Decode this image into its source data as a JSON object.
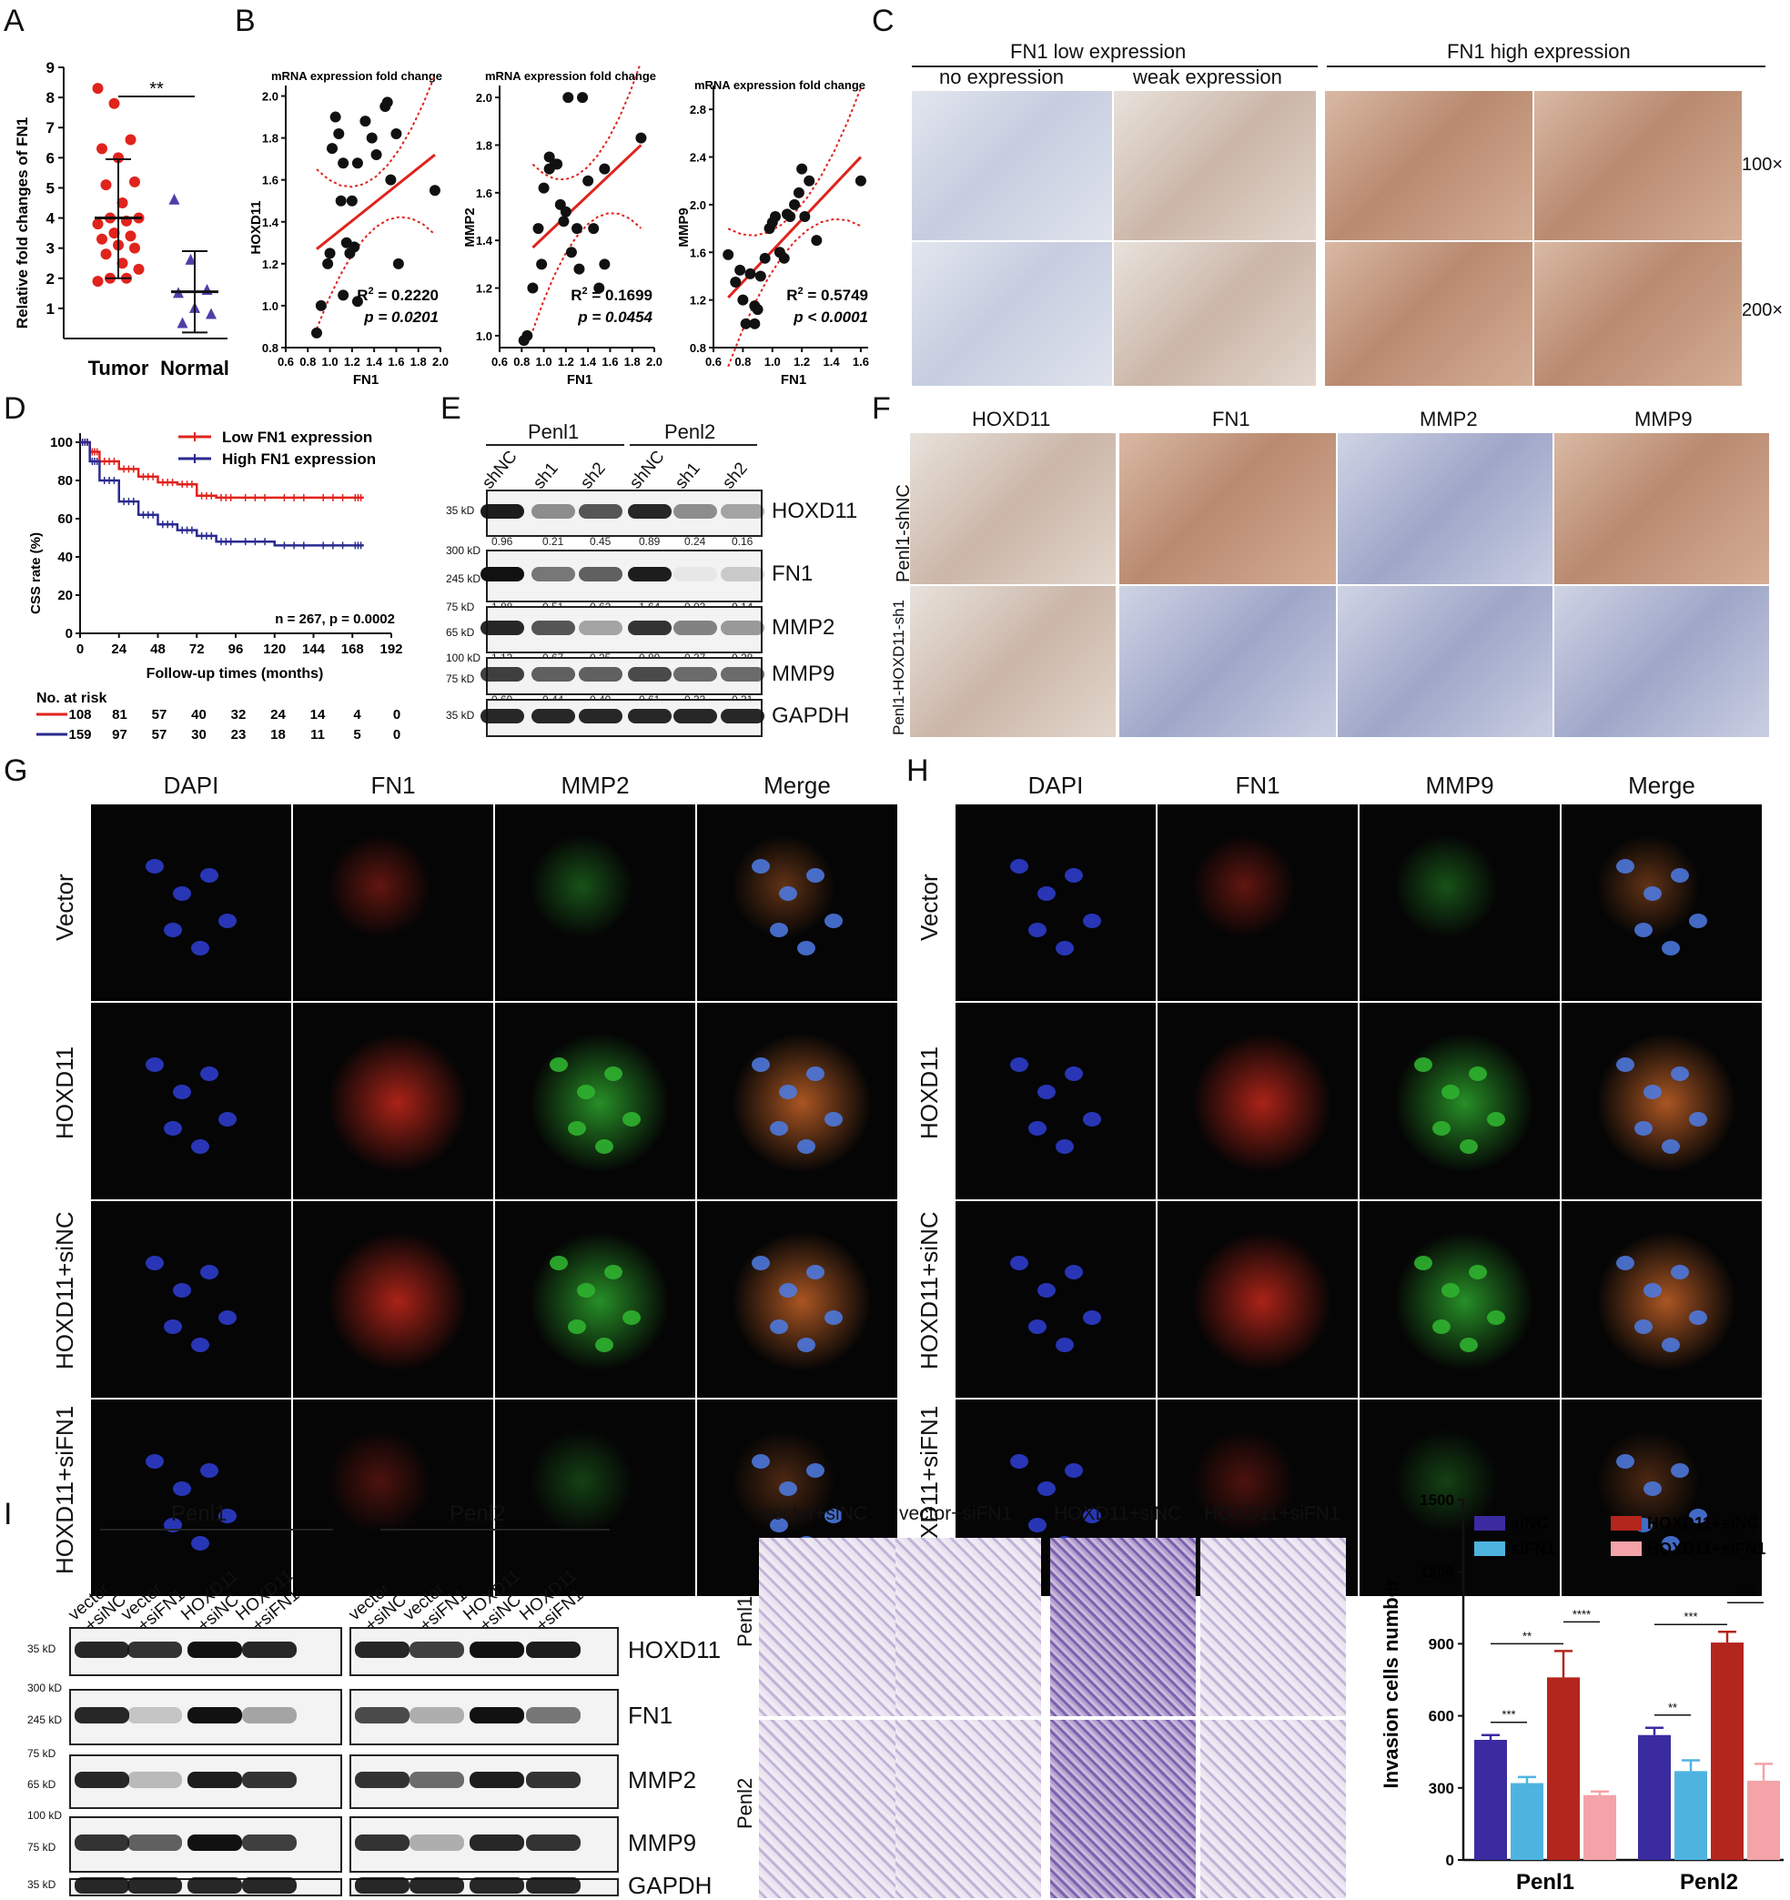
{
  "panels": [
    "A",
    "B",
    "C",
    "D",
    "E",
    "F",
    "G",
    "H",
    "I",
    "J"
  ],
  "panelA": {
    "ylabel": "Relative fold changes of FN1",
    "yticks": [
      "9",
      "8",
      "7",
      "6",
      "5",
      "4",
      "3",
      "2",
      "1"
    ],
    "categories": [
      "Tumor",
      "Normal"
    ],
    "sig": "**"
  },
  "panelB": {
    "title": "mRNA expression fold change",
    "plots": [
      {
        "ylabel": "HOXD11",
        "r2": "R",
        "r2val": " = 0.2220",
        "p": "p = 0.0201",
        "yticks": [
          "2.0",
          "1.8",
          "1.6",
          "1.4",
          "1.2",
          "1.0",
          "0.8"
        ],
        "xticks": [
          "0.6",
          "0.8",
          "1.0",
          "1.2",
          "1.4",
          "1.6",
          "1.8",
          "2.0"
        ]
      },
      {
        "ylabel": "MMP2",
        "r2": "R",
        "r2val": " = 0.1699",
        "p": "p = 0.0454",
        "yticks": [
          "2.0",
          "1.8",
          "1.6",
          "1.4",
          "1.2",
          "1.0"
        ],
        "xticks": [
          "0.6",
          "0.8",
          "1.0",
          "1.2",
          "1.4",
          "1.6",
          "1.8",
          "2.0"
        ]
      },
      {
        "ylabel": "MMP9",
        "r2": "R",
        "r2val": " = 0.5749",
        "p": "p < 0.0001",
        "yticks": [
          "2.8",
          "2.4",
          "2.0",
          "1.6",
          "1.2",
          "0.8"
        ],
        "xticks": [
          "0.6",
          "0.8",
          "1.0",
          "1.2",
          "1.4",
          "1.6"
        ]
      }
    ],
    "xlabel": "FN1"
  },
  "panelC": {
    "group_low": "FN1 low expression",
    "group_high": "FN1 high expression",
    "sub_no": "no expression",
    "sub_weak": "weak expression",
    "mag1": "100×",
    "mag2": "200×"
  },
  "panelD": {
    "legend_low": "Low FN1 expression",
    "legend_high": "High FN1 expression",
    "ylabel": "CSS rate (%)",
    "xlabel": "Follow-up times (months)",
    "stat": "n = 267, p = 0.0002",
    "yticks": [
      "100",
      "80",
      "60",
      "40",
      "20",
      "0"
    ],
    "xticks": [
      "0",
      "24",
      "48",
      "72",
      "96",
      "120",
      "144",
      "168",
      "192"
    ],
    "risk_title": "No. at risk",
    "risk_low": [
      "108",
      "81",
      "57",
      "40",
      "32",
      "24",
      "14",
      "4",
      "0"
    ],
    "risk_high": [
      "159",
      "97",
      "57",
      "30",
      "23",
      "18",
      "11",
      "5",
      "0"
    ]
  },
  "panelE": {
    "groups": [
      "Penl1",
      "Penl2"
    ],
    "lanes": [
      "shNC",
      "sh1",
      "sh2",
      "shNC",
      "sh1",
      "sh2"
    ],
    "rows": [
      {
        "name": "HOXD11",
        "kd": [
          "35 kD"
        ],
        "vals": [
          "0.96",
          "0.21",
          "0.45",
          "0.89",
          "0.24",
          "0.16"
        ]
      },
      {
        "name": "FN1",
        "kd": [
          "300 kD",
          "245 kD"
        ],
        "vals": [
          "1.88",
          "0.51",
          "0.62",
          "1.64",
          "0.03",
          "0.14"
        ]
      },
      {
        "name": "MMP2",
        "kd": [
          "75 kD",
          "65 kD"
        ],
        "vals": [
          "1.13",
          "0.67",
          "0.25",
          "0.89",
          "0.37",
          "0.28"
        ]
      },
      {
        "name": "MMP9",
        "kd": [
          "100 kD",
          "75 kD"
        ],
        "vals": [
          "0.69",
          "0.44",
          "0.40",
          "0.61",
          "0.33",
          "0.31"
        ]
      },
      {
        "name": "GAPDH",
        "kd": [
          "35 kD"
        ],
        "vals": []
      }
    ]
  },
  "panelF": {
    "cols": [
      "HOXD11",
      "FN1",
      "MMP2",
      "MMP9"
    ],
    "rows": [
      "Penl1-shNC",
      "Penl1-HOXD11-sh1"
    ]
  },
  "panelG": {
    "cols": [
      "DAPI",
      "FN1",
      "MMP2",
      "Merge"
    ],
    "rows": [
      "Vector",
      "HOXD11",
      "HOXD11+siNC",
      "HOXD11+siFN1"
    ]
  },
  "panelH": {
    "cols": [
      "DAPI",
      "FN1",
      "MMP9",
      "Merge"
    ],
    "rows": [
      "Vector",
      "HOXD11",
      "HOXD11+siNC",
      "HOXD11+siFN1"
    ]
  },
  "panelI": {
    "groups": [
      "Penl1",
      "Penl2"
    ],
    "lanes": [
      "vector\n+siNC",
      "vector\n+siFN1",
      "HOXD11\n+siNC",
      "HOXD11\n+siFN1"
    ],
    "lane_l1": [
      "vector",
      "vector",
      "HOXD11",
      "HOXD11"
    ],
    "lane_l2": [
      "+siNC",
      "+siFN1",
      "+siNC",
      "+siFN1"
    ],
    "rows": [
      {
        "name": "HOXD11",
        "kd": [
          "35 kD"
        ]
      },
      {
        "name": "FN1",
        "kd": [
          "300 kD",
          "245 kD"
        ]
      },
      {
        "name": "MMP2",
        "kd": [
          "75 kD",
          "65 kD"
        ]
      },
      {
        "name": "MMP9",
        "kd": [
          "100 kD",
          "75 kD"
        ]
      },
      {
        "name": "GAPDH",
        "kd": [
          "35 kD"
        ]
      }
    ]
  },
  "panelJ": {
    "cols": [
      "vector+siNC",
      "vector+siFN1",
      "HOXD11+siNC",
      "HOXD11+siFN1"
    ],
    "rows": [
      "Penl1",
      "Penl2"
    ]
  },
  "chart_data": [
    {
      "type": "scatter",
      "panel": "A",
      "ylabel": "Relative fold changes of FN1",
      "categories": [
        "Tumor",
        "Normal"
      ],
      "ylim": [
        0,
        9
      ],
      "series": [
        {
          "name": "Tumor",
          "mean": 4.0,
          "sd_low": 2.0,
          "sd_high": 5.95,
          "values": [
            8.3,
            7.8,
            6.6,
            6.3,
            6.0,
            5.2,
            5.1,
            4.5,
            4.0,
            4.0,
            3.9,
            3.8,
            3.5,
            3.4,
            3.3,
            3.1,
            3.0,
            2.8,
            2.5,
            2.3,
            2.0,
            2.0,
            1.9
          ]
        },
        {
          "name": "Normal",
          "mean": 1.55,
          "sd_low": 0.2,
          "sd_high": 2.9,
          "values": [
            4.6,
            2.6,
            1.6,
            1.5,
            1.0,
            0.8,
            0.5
          ]
        }
      ],
      "annotation": "**"
    },
    {
      "type": "scatter",
      "panel": "B1",
      "xlabel": "FN1",
      "ylabel": "HOXD11",
      "xlim": [
        0.6,
        2.0
      ],
      "ylim": [
        0.8,
        2.05
      ],
      "points": [
        [
          0.88,
          0.87
        ],
        [
          0.92,
          1.0
        ],
        [
          0.98,
          1.2
        ],
        [
          1.0,
          1.25
        ],
        [
          1.02,
          1.75
        ],
        [
          1.05,
          1.9
        ],
        [
          1.08,
          1.82
        ],
        [
          1.1,
          1.5
        ],
        [
          1.12,
          1.68
        ],
        [
          1.12,
          1.05
        ],
        [
          1.15,
          1.3
        ],
        [
          1.18,
          1.25
        ],
        [
          1.2,
          1.5
        ],
        [
          1.22,
          1.28
        ],
        [
          1.25,
          1.02
        ],
        [
          1.25,
          1.68
        ],
        [
          1.32,
          1.88
        ],
        [
          1.38,
          1.8
        ],
        [
          1.42,
          1.72
        ],
        [
          1.5,
          1.95
        ],
        [
          1.52,
          1.97
        ],
        [
          1.55,
          1.6
        ],
        [
          1.6,
          1.82
        ],
        [
          1.62,
          1.2
        ],
        [
          1.95,
          1.55
        ]
      ],
      "fit": [
        [
          0.88,
          1.27
        ],
        [
          1.95,
          1.72
        ]
      ],
      "r2": "0.2220",
      "p": "0.0201"
    },
    {
      "type": "scatter",
      "panel": "B2",
      "xlabel": "FN1",
      "ylabel": "MMP2",
      "xlim": [
        0.6,
        2.0
      ],
      "ylim": [
        0.95,
        2.05
      ],
      "points": [
        [
          0.82,
          0.98
        ],
        [
          0.85,
          1.0
        ],
        [
          0.9,
          1.2
        ],
        [
          0.95,
          1.45
        ],
        [
          0.98,
          1.3
        ],
        [
          1.0,
          1.62
        ],
        [
          1.05,
          1.7
        ],
        [
          1.05,
          1.75
        ],
        [
          1.1,
          1.72
        ],
        [
          1.12,
          1.72
        ],
        [
          1.15,
          1.55
        ],
        [
          1.18,
          1.48
        ],
        [
          1.2,
          1.52
        ],
        [
          1.22,
          2.0
        ],
        [
          1.25,
          1.35
        ],
        [
          1.3,
          1.45
        ],
        [
          1.32,
          1.28
        ],
        [
          1.35,
          2.0
        ],
        [
          1.4,
          1.65
        ],
        [
          1.45,
          1.45
        ],
        [
          1.5,
          1.2
        ],
        [
          1.55,
          1.7
        ],
        [
          1.55,
          1.3
        ],
        [
          1.88,
          1.83
        ]
      ],
      "fit": [
        [
          0.9,
          1.37
        ],
        [
          1.88,
          1.8
        ]
      ],
      "r2": "0.1699",
      "p": "0.0454"
    },
    {
      "type": "scatter",
      "panel": "B3",
      "xlabel": "FN1",
      "ylabel": "MMP9",
      "xlim": [
        0.6,
        1.65
      ],
      "ylim": [
        0.8,
        3.0
      ],
      "points": [
        [
          0.7,
          1.58
        ],
        [
          0.75,
          1.35
        ],
        [
          0.78,
          1.45
        ],
        [
          0.8,
          1.2
        ],
        [
          0.82,
          1.0
        ],
        [
          0.85,
          1.42
        ],
        [
          0.88,
          1.15
        ],
        [
          0.88,
          1.0
        ],
        [
          0.9,
          1.12
        ],
        [
          0.92,
          1.4
        ],
        [
          0.95,
          1.55
        ],
        [
          0.98,
          1.8
        ],
        [
          1.0,
          1.85
        ],
        [
          1.02,
          1.9
        ],
        [
          1.05,
          1.6
        ],
        [
          1.08,
          1.55
        ],
        [
          1.1,
          1.92
        ],
        [
          1.12,
          1.9
        ],
        [
          1.15,
          2.0
        ],
        [
          1.18,
          2.1
        ],
        [
          1.2,
          2.3
        ],
        [
          1.22,
          1.9
        ],
        [
          1.25,
          2.2
        ],
        [
          1.3,
          1.7
        ],
        [
          1.6,
          2.2
        ]
      ],
      "fit": [
        [
          0.7,
          1.22
        ],
        [
          1.6,
          2.4
        ]
      ],
      "r2": "0.5749",
      "p": "< 0.0001"
    },
    {
      "type": "line",
      "panel": "D",
      "xlabel": "Follow-up times (months)",
      "ylabel": "CSS rate (%)",
      "xlim": [
        0,
        192
      ],
      "ylim": [
        0,
        100
      ],
      "series": [
        {
          "name": "Low FN1 expression",
          "color": "#e0231d",
          "x": [
            0,
            6,
            12,
            24,
            36,
            48,
            60,
            72,
            84,
            96,
            120,
            144,
            168,
            175
          ],
          "y": [
            100,
            95,
            90,
            86,
            82,
            79,
            78,
            72,
            71,
            71,
            71,
            71,
            71,
            71
          ]
        },
        {
          "name": "High FN1 expression",
          "color": "#2a2a8f",
          "x": [
            0,
            6,
            12,
            24,
            36,
            48,
            60,
            72,
            84,
            96,
            120,
            144,
            168,
            175
          ],
          "y": [
            100,
            90,
            80,
            69,
            62,
            57,
            54,
            51,
            48,
            48,
            46,
            46,
            46,
            46
          ]
        }
      ],
      "annotation": "n = 267, p = 0.0002"
    },
    {
      "type": "bar",
      "panel": "J",
      "ylabel": "Invasion cells number",
      "categories": [
        "Penl1",
        "Penl2"
      ],
      "ylim": [
        0,
        1500
      ],
      "series": [
        {
          "name": "siNC",
          "color": "#3b2ba0",
          "values": [
            500,
            520
          ],
          "err": [
            20,
            30
          ]
        },
        {
          "name": "siFN1",
          "color": "#4fb3e0",
          "values": [
            320,
            370
          ],
          "err": [
            25,
            45
          ]
        },
        {
          "name": "HOXD11+siNC",
          "color": "#b3261e",
          "values": [
            760,
            905
          ],
          "err": [
            110,
            45
          ]
        },
        {
          "name": "HOXD11+siFN1",
          "color": "#f4a3a8",
          "values": [
            270,
            330
          ],
          "err": [
            15,
            70
          ]
        }
      ],
      "significance": [
        "***",
        "**",
        "****",
        "**",
        "***",
        "****"
      ]
    }
  ]
}
